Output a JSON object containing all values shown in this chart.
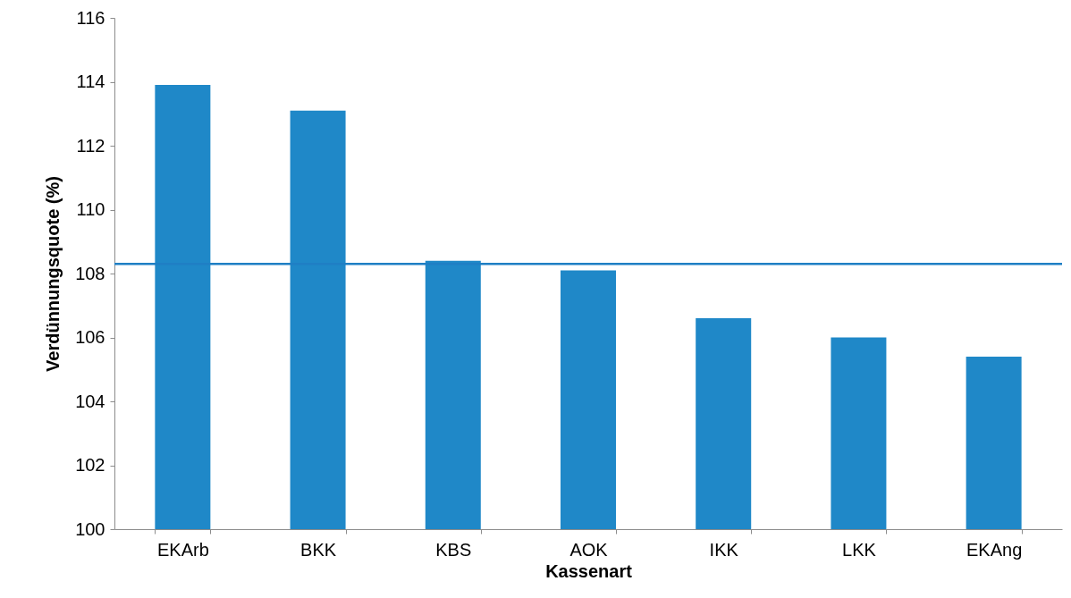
{
  "chart_data": {
    "type": "bar",
    "xlabel": "Kassenart",
    "ylabel": "Verdünnungsquote (%)",
    "categories": [
      "EKArb",
      "BKK",
      "KBS",
      "AOK",
      "IKK",
      "LKK",
      "EKAng"
    ],
    "series": [
      {
        "color": "#1f88c8",
        "values": [
          113.9,
          113.1,
          108.4,
          108.1,
          106.6,
          106.0,
          105.4
        ]
      }
    ],
    "ylim": [
      100,
      116
    ],
    "yticks": [
      100,
      102,
      104,
      106,
      108,
      110,
      112,
      114,
      116
    ],
    "grid": false,
    "ref_lines": [
      {
        "axis": "y",
        "value": 108.3,
        "color": "#1f7fc4"
      }
    ]
  }
}
